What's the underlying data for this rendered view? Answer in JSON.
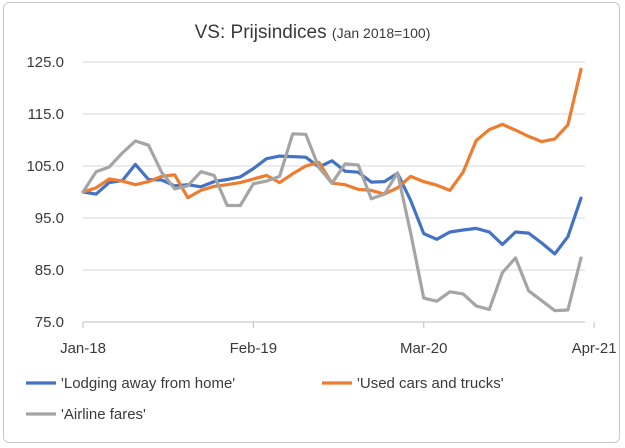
{
  "chart_data": {
    "type": "line",
    "title": "VS: Prijsindices",
    "subtitle": "(Jan 2018=100)",
    "xlabel": "",
    "ylabel": "",
    "ylim": [
      75,
      125
    ],
    "yticks": [
      "125.0",
      "115.0",
      "105.0",
      "95.0",
      "85.0",
      "75.0"
    ],
    "ytick_values": [
      125,
      115,
      105,
      95,
      85,
      75
    ],
    "xtick_labels": [
      "Jan-18",
      "Feb-19",
      "Mar-20",
      "Apr-21"
    ],
    "xtick_index": [
      0,
      13,
      26,
      39
    ],
    "grid": true,
    "legend_position": "bottom",
    "series": [
      {
        "name": "'Lodging away from home'",
        "color": "#4472c4",
        "values": [
          100,
          99.6,
          101.8,
          102.2,
          105.3,
          102.4,
          102.3,
          101.2,
          101.4,
          101.0,
          102.0,
          102.4,
          102.9,
          104.5,
          106.4,
          106.9,
          106.8,
          106.7,
          104.8,
          106.0,
          104.0,
          103.8,
          101.9,
          102.0,
          103.6,
          98.4,
          92.0,
          90.9,
          92.3,
          92.7,
          93.0,
          92.3,
          89.9,
          92.3,
          92.1,
          90.2,
          88.1,
          91.4,
          98.8
        ]
      },
      {
        "name": "'Used cars and trucks'",
        "color": "#ed7d31",
        "values": [
          100,
          100.8,
          102.5,
          102.1,
          101.4,
          102.0,
          103.0,
          103.3,
          98.9,
          100.3,
          101.1,
          101.4,
          101.8,
          102.5,
          103.2,
          101.8,
          103.5,
          105.0,
          105.7,
          101.7,
          101.4,
          100.5,
          100.3,
          99.6,
          100.8,
          103.0,
          102.0,
          101.3,
          100.3,
          103.8,
          109.9,
          112.0,
          113.0,
          111.9,
          110.7,
          109.7,
          110.2,
          112.9,
          123.6
        ]
      },
      {
        "name": "'Airline fares'",
        "color": "#a5a5a5",
        "values": [
          100,
          103.9,
          104.8,
          107.5,
          109.8,
          109.0,
          103.8,
          100.6,
          101.2,
          103.9,
          103.2,
          97.4,
          97.4,
          101.6,
          102.1,
          103.0,
          111.2,
          111.1,
          104.7,
          101.7,
          105.4,
          105.2,
          98.7,
          99.6,
          103.7,
          92.2,
          79.6,
          79.0,
          80.8,
          80.4,
          78.1,
          77.4,
          84.5,
          87.3,
          81.0,
          79.1,
          77.2,
          77.3,
          87.3
        ]
      }
    ]
  }
}
